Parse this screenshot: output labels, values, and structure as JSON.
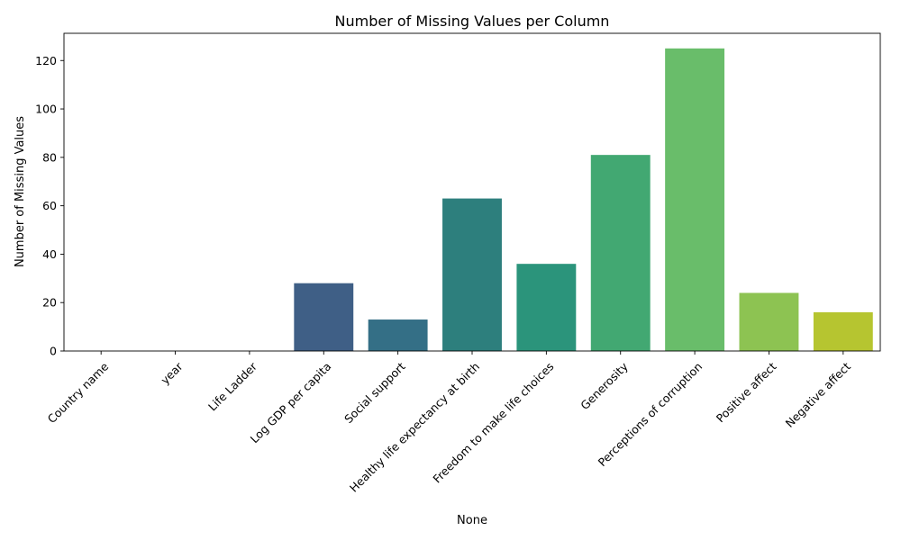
{
  "chart_data": {
    "type": "bar",
    "title": "Number of Missing Values per Column",
    "xlabel": "None",
    "ylabel": "Number of Missing Values",
    "categories": [
      "Country name",
      "year",
      "Life Ladder",
      "Log GDP per capita",
      "Social support",
      "Healthy life expectancy at birth",
      "Freedom to make life choices",
      "Generosity",
      "Perceptions of corruption",
      "Positive affect",
      "Negative affect"
    ],
    "values": [
      0,
      0,
      0,
      28,
      13,
      63,
      36,
      81,
      125,
      24,
      16
    ],
    "colors": [
      "#440154",
      "#482878",
      "#3e4989",
      "#3f5f86",
      "#346f86",
      "#2d7f7d",
      "#2b947b",
      "#42a872",
      "#69bd6a",
      "#8dc352",
      "#b6c530"
    ],
    "ylim": [
      0,
      131.25
    ],
    "yticks": [
      0,
      20,
      40,
      60,
      80,
      100,
      120
    ],
    "grid": false,
    "legend": "none"
  }
}
